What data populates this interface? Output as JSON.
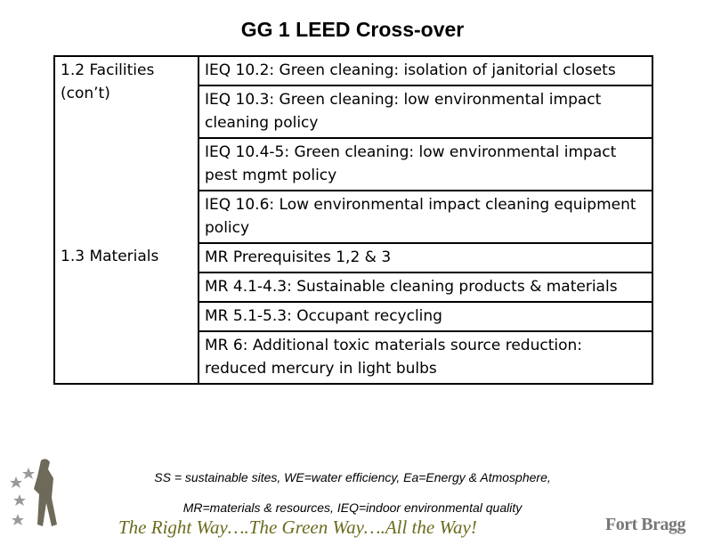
{
  "title": "GG 1 LEED Cross-over",
  "table": {
    "groups": [
      {
        "label": "1.2  Facilities (con’t)",
        "items": [
          "IEQ 10.2:  Green cleaning: isolation of janitorial closets",
          "IEQ 10.3:  Green cleaning: low environmental impact cleaning policy",
          "IEQ 10.4-5:  Green cleaning: low environmental impact pest mgmt policy",
          "IEQ 10.6:  Low environmental impact cleaning equipment policy"
        ]
      },
      {
        "label": "1.3  Materials",
        "items": [
          "MR Prerequisites 1,2 & 3",
          "MR 4.1-4.3:  Sustainable cleaning products & materials",
          "MR 5.1-5.3:  Occupant recycling",
          "MR 6:  Additional toxic materials source reduction: reduced mercury in light bulbs"
        ]
      }
    ]
  },
  "footer": {
    "notes": [
      "SS = sustainable sites, WE=water efficiency, Ea=Energy & Atmosphere,",
      "MR=materials & resources, IEQ=indoor environmental quality"
    ],
    "slogan": "The Right Way….The Green Way….All the Way!",
    "logo": "Fort Bragg"
  }
}
